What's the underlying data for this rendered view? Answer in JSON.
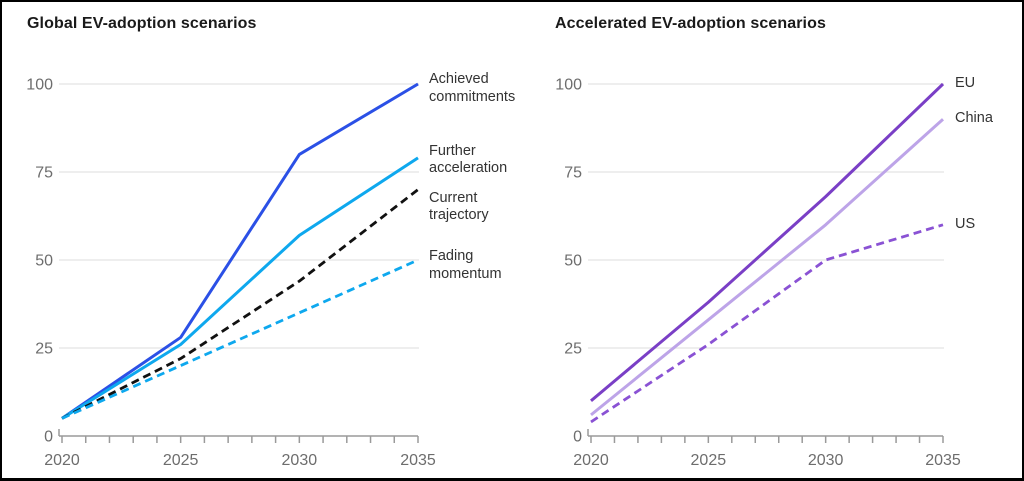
{
  "figure": {
    "background": "#ffffff",
    "border_color": "#000000"
  },
  "colors": {
    "grid": "#e9e9e9",
    "axis": "#9a9a9a",
    "tick_label": "#6d6d6d",
    "title": "#1a1a1a",
    "series_label": "#333333"
  },
  "chart_data": [
    {
      "type": "line",
      "title": "Global EV-adoption scenarios",
      "x": [
        2020,
        2025,
        2030,
        2035
      ],
      "x_tick_labels": [
        "2020",
        "2025",
        "2030",
        "2035"
      ],
      "minor_x_tick_step": 1,
      "xlim": [
        2020,
        2035
      ],
      "y_ticks": [
        0,
        25,
        50,
        75,
        100
      ],
      "y_tick_labels": [
        "0",
        "25",
        "50",
        "75",
        "100"
      ],
      "ylim": [
        0,
        100
      ],
      "grid": "horizontal",
      "legend_position": "right-of-line-ends",
      "series": [
        {
          "name": "Achieved commitments",
          "values": [
            5,
            28,
            80,
            100
          ],
          "color": "#2b50e6",
          "style": "solid"
        },
        {
          "name": "Further acceleration",
          "values": [
            5,
            26,
            57,
            79
          ],
          "color": "#0ea8ee",
          "style": "solid"
        },
        {
          "name": "Current trajectory",
          "values": [
            5,
            22,
            44,
            70
          ],
          "color": "#111111",
          "style": "dashed"
        },
        {
          "name": "Fading momentum",
          "values": [
            5,
            20,
            35,
            50
          ],
          "color": "#0ea8ee",
          "style": "dashed"
        }
      ]
    },
    {
      "type": "line",
      "title": "Accelerated EV-adoption scenarios",
      "x": [
        2020,
        2025,
        2030,
        2035
      ],
      "x_tick_labels": [
        "2020",
        "2025",
        "2030",
        "2035"
      ],
      "minor_x_tick_step": 1,
      "xlim": [
        2020,
        2035
      ],
      "y_ticks": [
        0,
        25,
        50,
        75,
        100
      ],
      "y_tick_labels": [
        "0",
        "25",
        "50",
        "75",
        "100"
      ],
      "ylim": [
        0,
        100
      ],
      "grid": "horizontal",
      "legend_position": "right-of-line-ends",
      "series": [
        {
          "name": "EU",
          "values": [
            10,
            38,
            68,
            100
          ],
          "color": "#7a3fc6",
          "style": "solid"
        },
        {
          "name": "China",
          "values": [
            6,
            33,
            60,
            90
          ],
          "color": "#bda4e8",
          "style": "solid"
        },
        {
          "name": "US",
          "values": [
            4,
            26,
            50,
            60
          ],
          "color": "#8a52d4",
          "style": "dashed"
        }
      ]
    }
  ]
}
